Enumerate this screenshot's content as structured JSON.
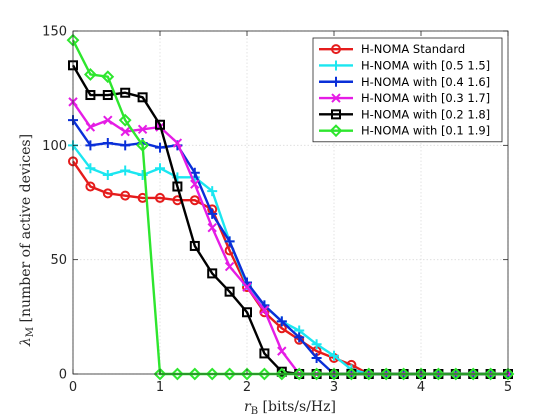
{
  "chart_data": {
    "type": "line",
    "title": "",
    "xlabel": "r_B [bits/s/Hz]",
    "ylabel": "λ_M [number of active devices]",
    "xlim": [
      0,
      5
    ],
    "ylim": [
      0,
      150
    ],
    "xticks": [
      "0",
      "1",
      "2",
      "3",
      "4",
      "5"
    ],
    "yticks": [
      "0",
      "50",
      "100",
      "150"
    ],
    "grid": true,
    "legend_position": "top-right",
    "x": [
      0,
      0.2,
      0.4,
      0.6,
      0.8,
      1.0,
      1.2,
      1.4,
      1.6,
      1.8,
      2.0,
      2.2,
      2.4,
      2.6,
      2.8,
      3.0,
      3.2,
      3.4,
      3.6,
      3.8,
      4.0,
      4.2,
      4.4,
      4.6,
      4.8,
      5.0
    ],
    "series": [
      {
        "name": "H-NOMA Standard",
        "color": "#e51c1c",
        "marker": "circle",
        "values": [
          93,
          82,
          79,
          78,
          77,
          77,
          76,
          76,
          72,
          54,
          38,
          27,
          20,
          15,
          10,
          7,
          4,
          0,
          0,
          0,
          0,
          0,
          0,
          0,
          0,
          0
        ]
      },
      {
        "name": "H-NOMA with [0.5 1.5]",
        "color": "#1be6f0",
        "marker": "plus",
        "values": [
          100,
          90,
          87,
          89,
          87,
          90,
          86,
          86,
          80,
          58,
          39,
          30,
          23,
          19,
          13,
          8,
          2,
          0,
          0,
          0,
          0,
          0,
          0,
          0,
          0,
          0
        ]
      },
      {
        "name": "H-NOMA with [0.4 1.6]",
        "color": "#0a2fd8",
        "marker": "plus",
        "values": [
          111,
          100,
          101,
          100,
          101,
          99,
          100,
          88,
          70,
          58,
          40,
          30,
          23,
          16,
          7,
          0,
          0,
          0,
          0,
          0,
          0,
          0,
          0,
          0,
          0,
          0
        ]
      },
      {
        "name": "H-NOMA with [0.3 1.7]",
        "color": "#e51ce5",
        "marker": "x",
        "values": [
          119,
          108,
          111,
          106,
          107,
          108,
          101,
          83,
          64,
          47,
          38,
          28,
          10,
          0,
          0,
          0,
          0,
          0,
          0,
          0,
          0,
          0,
          0,
          0,
          0,
          0
        ]
      },
      {
        "name": "H-NOMA with [0.2 1.8]",
        "color": "#000000",
        "marker": "square",
        "values": [
          135,
          122,
          122,
          123,
          121,
          109,
          82,
          56,
          44,
          36,
          27,
          9,
          1,
          0,
          0,
          0,
          0,
          0,
          0,
          0,
          0,
          0,
          0,
          0,
          0,
          0
        ]
      },
      {
        "name": "H-NOMA with [0.1 1.9]",
        "color": "#2ee62e",
        "marker": "diamond",
        "values": [
          146,
          131,
          130,
          111,
          100,
          0,
          0,
          0,
          0,
          0,
          0,
          0,
          0,
          0,
          0,
          0,
          0,
          0,
          0,
          0,
          0,
          0,
          0,
          0,
          0,
          0
        ]
      }
    ]
  }
}
